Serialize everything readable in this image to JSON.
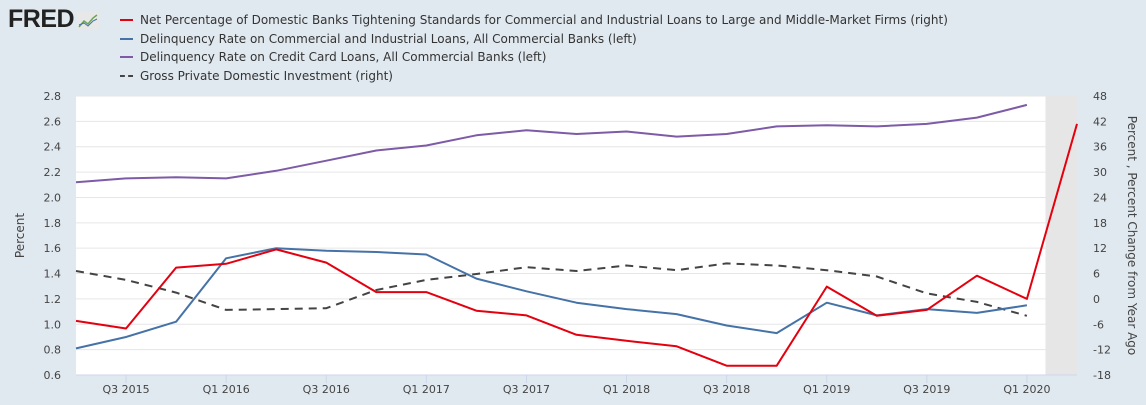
{
  "brand": {
    "logo_text": "FRED",
    "logo_icon": "chart-trend-icon"
  },
  "chart_data": {
    "type": "line",
    "title": "",
    "x": [
      "Q2 2015",
      "Q3 2015",
      "Q4 2015",
      "Q1 2016",
      "Q2 2016",
      "Q3 2016",
      "Q4 2016",
      "Q1 2017",
      "Q2 2017",
      "Q3 2017",
      "Q4 2017",
      "Q1 2018",
      "Q2 2018",
      "Q3 2018",
      "Q4 2018",
      "Q1 2019",
      "Q2 2019",
      "Q3 2019",
      "Q4 2019",
      "Q1 2020",
      "Q2 2020"
    ],
    "x_tick_labels": [
      "Q3 2015",
      "Q1 2016",
      "Q3 2016",
      "Q1 2017",
      "Q3 2017",
      "Q1 2018",
      "Q3 2018",
      "Q1 2019",
      "Q3 2019",
      "Q1 2020"
    ],
    "left_axis": {
      "label": "Percent",
      "range": [
        0.6,
        2.8
      ],
      "ticks": [
        "2.8",
        "2.6",
        "2.4",
        "2.2",
        "2.0",
        "1.8",
        "1.6",
        "1.4",
        "1.2",
        "1.0",
        "0.8",
        "0.6"
      ]
    },
    "right_axis": {
      "label": "Percent , Percent Change from Year Ago",
      "range": [
        -18,
        48
      ],
      "ticks": [
        "48",
        "42",
        "36",
        "30",
        "24",
        "18",
        "12",
        "6",
        "0",
        "-6",
        "-12",
        "-18"
      ]
    },
    "grid": true,
    "recession_shading": {
      "from": "Q1 2020",
      "to": "Q2 2020"
    },
    "legend_position": "top",
    "series": [
      {
        "name": "Net Percentage of Domestic Banks Tightening Standards for Commercial and Industrial Loans to Large and Middle-Market Firms (right)",
        "axis": "right",
        "color": "#e4000f",
        "dashed": false,
        "values": [
          -5.2,
          -7.0,
          7.4,
          8.3,
          11.7,
          8.6,
          1.6,
          1.6,
          -2.8,
          -3.9,
          -8.5,
          -9.9,
          -11.2,
          -15.8,
          -15.8,
          2.9,
          -4.0,
          -2.6,
          5.5,
          0.0,
          41.4
        ]
      },
      {
        "name": "Delinquency Rate on Commercial and Industrial Loans, All Commercial Banks (left)",
        "axis": "left",
        "color": "#4572a7",
        "dashed": false,
        "values": [
          0.81,
          0.9,
          1.02,
          1.52,
          1.6,
          1.58,
          1.57,
          1.55,
          1.36,
          1.26,
          1.17,
          1.12,
          1.08,
          0.99,
          0.93,
          1.17,
          1.07,
          1.12,
          1.09,
          1.15,
          null
        ]
      },
      {
        "name": "Delinquency Rate on Credit Card Loans, All Commercial Banks (left)",
        "axis": "left",
        "color": "#7d5ba6",
        "dashed": false,
        "values": [
          2.12,
          2.15,
          2.16,
          2.15,
          2.21,
          2.29,
          2.37,
          2.41,
          2.49,
          2.53,
          2.5,
          2.52,
          2.48,
          2.5,
          2.56,
          2.57,
          2.56,
          2.58,
          2.63,
          2.73,
          null
        ]
      },
      {
        "name": "Gross Private Domestic Investment (right)",
        "axis": "right",
        "color": "#444444",
        "dashed": true,
        "values": [
          6.6,
          4.5,
          1.5,
          -2.6,
          -2.4,
          -2.2,
          2.1,
          4.5,
          5.9,
          7.5,
          6.6,
          7.9,
          6.8,
          8.4,
          7.9,
          6.8,
          5.3,
          1.3,
          -0.7,
          -4.0,
          null
        ]
      }
    ]
  }
}
